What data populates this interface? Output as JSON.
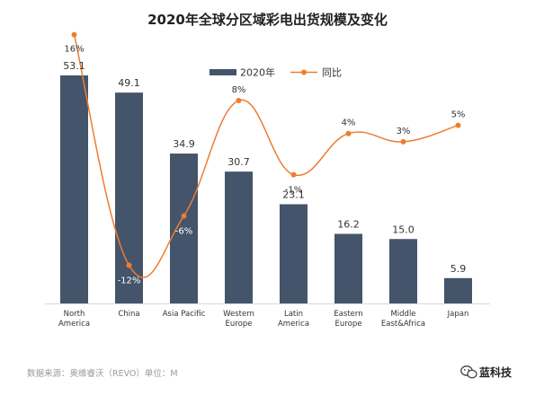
{
  "chart_data": {
    "type": "bar",
    "title": "2020年全球分区域彩电出货规模及变化",
    "legend": [
      {
        "name": "2020年",
        "color": "#44546a",
        "kind": "bar"
      },
      {
        "name": "同比",
        "color": "#ed7d31",
        "kind": "line"
      }
    ],
    "legend_position": "top-center",
    "categories": [
      [
        "North",
        "America"
      ],
      [
        "China"
      ],
      [
        "Asia Pacific"
      ],
      [
        "Western",
        "Europe"
      ],
      [
        "Latin",
        "America"
      ],
      [
        "Eastern",
        "Europe"
      ],
      [
        "Middle",
        "East&Africa"
      ],
      [
        "Japan"
      ]
    ],
    "series": [
      {
        "name": "2020年",
        "type": "bar",
        "color": "#44546a",
        "values": [
          53.1,
          49.1,
          34.9,
          30.7,
          23.1,
          16.2,
          15.0,
          5.9
        ],
        "labels": [
          "53.1",
          "49.1",
          "34.9",
          "30.7",
          "23.1",
          "16.2",
          "15.0",
          "5.9"
        ]
      },
      {
        "name": "同比",
        "type": "line",
        "color": "#ed7d31",
        "smooth": true,
        "values": [
          16,
          -12,
          -6,
          8,
          -1,
          4,
          3,
          5
        ],
        "labels": [
          "16%",
          "-12%",
          "-6%",
          "8%",
          "-1%",
          "4%",
          "3%",
          "5%"
        ]
      }
    ],
    "ylim": [
      0,
      60
    ],
    "y2lim": [
      -15,
      20
    ],
    "grid": false
  },
  "source": "数据来源：奥维睿沃（REVO）单位：M",
  "brand": {
    "name": "蓝科技",
    "icon": "wechat-icon"
  }
}
